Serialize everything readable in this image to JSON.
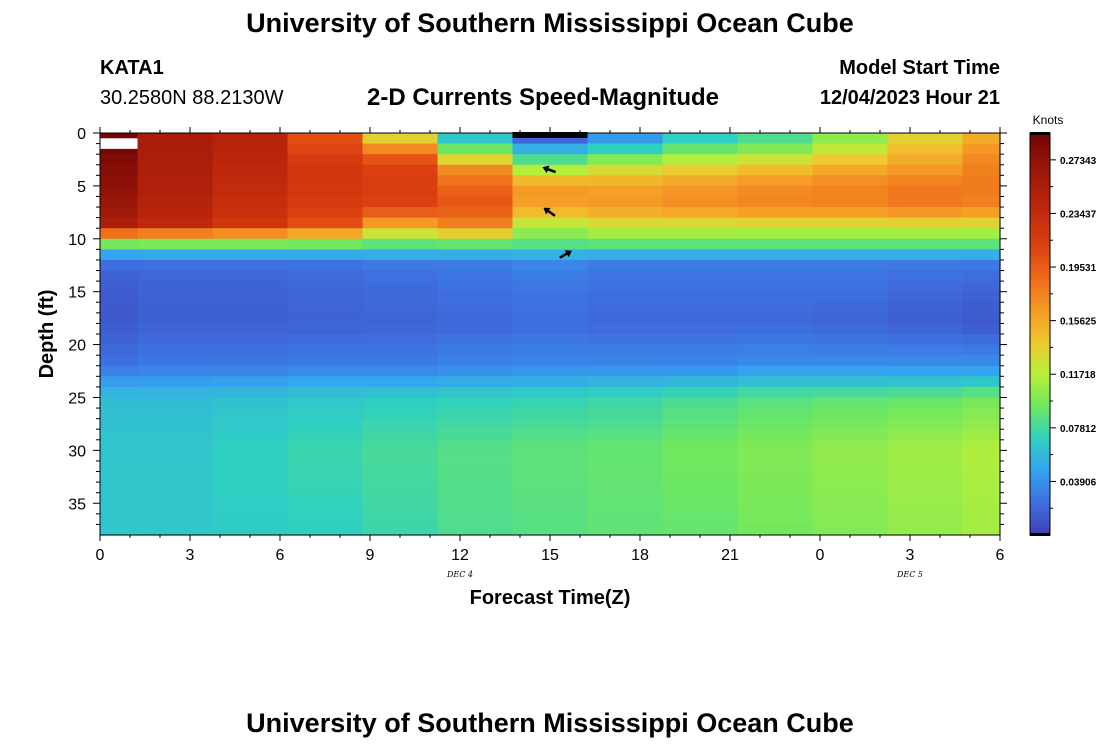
{
  "page": {
    "title": "University of Southern Mississippi Ocean Cube",
    "title_repeat": "University of Southern Mississippi Ocean Cube"
  },
  "header": {
    "station": "KATA1",
    "coordinates": "30.2580N  88.2130W",
    "subtitle": "2-D Currents Speed-Magnitude",
    "model_start_label": "Model Start Time",
    "model_start_value": "12/04/2023 Hour 21"
  },
  "chart_data": {
    "type": "heatmap",
    "title": "2-D Currents Speed-Magnitude",
    "xlabel": "Forecast Time(Z)",
    "ylabel": "Depth (ft)",
    "x_tick_labels": [
      "0",
      "3",
      "6",
      "9",
      "12",
      "15",
      "18",
      "21",
      "0",
      "3",
      "6"
    ],
    "x_day_labels": [
      {
        "label": "DEC 4",
        "at_tick": 4
      },
      {
        "label": "DEC 5",
        "at_tick": 9
      }
    ],
    "y_tick_labels": [
      "0",
      "5",
      "10",
      "15",
      "20",
      "25",
      "30",
      "35"
    ],
    "xlim": [
      0,
      30
    ],
    "ylim": [
      0,
      38
    ],
    "colorbar": {
      "unit": "Knots",
      "min": 0,
      "max": 0.293,
      "tick_values": [
        0.27343,
        0.23437,
        0.19531,
        0.15625,
        0.11718,
        0.07812,
        0.03906
      ],
      "tick_labels": [
        "0.27343",
        "0.23437",
        "0.19531",
        "0.15625",
        "0.11718",
        "0.07812",
        "0.03906"
      ]
    },
    "columns": [
      {
        "x0": 0,
        "x1": 1.25
      },
      {
        "x0": 1.25,
        "x1": 3.75
      },
      {
        "x0": 3.75,
        "x1": 6.25
      },
      {
        "x0": 6.25,
        "x1": 8.75
      },
      {
        "x0": 8.75,
        "x1": 11.25
      },
      {
        "x0": 11.25,
        "x1": 13.75
      },
      {
        "x0": 13.75,
        "x1": 16.25
      },
      {
        "x0": 16.25,
        "x1": 18.75
      },
      {
        "x0": 18.75,
        "x1": 21.25
      },
      {
        "x0": 21.25,
        "x1": 23.75
      },
      {
        "x0": 23.75,
        "x1": 26.25
      },
      {
        "x0": 26.25,
        "x1": 28.75
      },
      {
        "x0": 28.75,
        "x1": 30
      }
    ],
    "depth_profiles": [
      {
        "depths": [
          0,
          1,
          2,
          3,
          5,
          7,
          9,
          10,
          11,
          12,
          14,
          18,
          22,
          24,
          25,
          30,
          38
        ],
        "values": [
          0.29,
          0.29,
          0.285,
          0.28,
          0.275,
          0.265,
          0.25,
          0.12,
          0.07,
          0.025,
          0.015,
          0.013,
          0.025,
          0.05,
          0.06,
          0.065,
          0.065
        ]
      },
      {
        "depths": [
          0,
          1,
          3,
          5,
          7,
          9,
          10,
          11,
          12,
          14,
          18,
          22,
          24,
          25,
          30,
          38
        ],
        "values": [
          0.255,
          0.255,
          0.253,
          0.25,
          0.245,
          0.235,
          0.12,
          0.075,
          0.025,
          0.018,
          0.016,
          0.028,
          0.05,
          0.06,
          0.065,
          0.065
        ]
      },
      {
        "depths": [
          0,
          1,
          3,
          5,
          7,
          9,
          10,
          11,
          12,
          14,
          18,
          22,
          24,
          25,
          30,
          38
        ],
        "values": [
          0.245,
          0.245,
          0.24,
          0.235,
          0.23,
          0.22,
          0.12,
          0.075,
          0.025,
          0.018,
          0.016,
          0.028,
          0.052,
          0.062,
          0.07,
          0.068
        ]
      },
      {
        "depths": [
          0,
          1,
          3,
          5,
          7,
          9,
          10,
          11,
          12,
          14,
          18,
          22,
          24,
          25,
          30,
          38
        ],
        "values": [
          0.2,
          0.205,
          0.22,
          0.22,
          0.215,
          0.2,
          0.115,
          0.075,
          0.027,
          0.02,
          0.017,
          0.03,
          0.055,
          0.065,
          0.075,
          0.07
        ]
      },
      {
        "depths": [
          0,
          1,
          2,
          3,
          5,
          7,
          9,
          10,
          11,
          12,
          14,
          18,
          22,
          24,
          25,
          30,
          38
        ],
        "values": [
          0.115,
          0.155,
          0.19,
          0.21,
          0.215,
          0.21,
          0.15,
          0.1,
          0.075,
          0.03,
          0.022,
          0.018,
          0.03,
          0.055,
          0.068,
          0.08,
          0.075
        ]
      },
      {
        "depths": [
          0,
          1,
          2,
          3,
          5,
          7,
          9,
          10,
          11,
          12,
          14,
          18,
          22,
          24,
          25,
          30,
          38
        ],
        "values": [
          0.045,
          0.085,
          0.1,
          0.165,
          0.19,
          0.2,
          0.17,
          0.105,
          0.075,
          0.03,
          0.025,
          0.02,
          0.033,
          0.058,
          0.07,
          0.085,
          0.082
        ]
      },
      {
        "depths": [
          0,
          1,
          2,
          3,
          5,
          7,
          9,
          10,
          11,
          12,
          14,
          18,
          22,
          24,
          25,
          30,
          38
        ],
        "values": [
          0.0,
          0.04,
          0.065,
          0.1,
          0.165,
          0.16,
          0.11,
          0.095,
          0.075,
          0.035,
          0.028,
          0.022,
          0.035,
          0.06,
          0.072,
          0.088,
          0.085
        ]
      },
      {
        "depths": [
          0,
          1,
          2,
          3,
          5,
          7,
          9,
          10,
          11,
          12,
          14,
          18,
          22,
          24,
          25,
          30,
          38
        ],
        "values": [
          0.025,
          0.06,
          0.08,
          0.12,
          0.16,
          0.165,
          0.12,
          0.1,
          0.075,
          0.03,
          0.025,
          0.02,
          0.035,
          0.062,
          0.075,
          0.09,
          0.088
        ]
      },
      {
        "depths": [
          0,
          1,
          2,
          3,
          5,
          7,
          9,
          10,
          11,
          12,
          14,
          18,
          22,
          24,
          25,
          30,
          38
        ],
        "values": [
          0.06,
          0.08,
          0.1,
          0.13,
          0.165,
          0.17,
          0.12,
          0.1,
          0.075,
          0.03,
          0.025,
          0.02,
          0.035,
          0.065,
          0.08,
          0.095,
          0.09
        ]
      },
      {
        "depths": [
          0,
          1,
          2,
          3,
          5,
          7,
          9,
          10,
          11,
          12,
          14,
          18,
          22,
          24,
          25,
          30,
          38
        ],
        "values": [
          0.075,
          0.09,
          0.11,
          0.14,
          0.17,
          0.175,
          0.12,
          0.1,
          0.075,
          0.03,
          0.025,
          0.02,
          0.038,
          0.07,
          0.085,
          0.1,
          0.095
        ]
      },
      {
        "depths": [
          0,
          1,
          2,
          3,
          5,
          7,
          9,
          10,
          11,
          12,
          14,
          18,
          22,
          24,
          25,
          30,
          38
        ],
        "values": [
          0.1,
          0.11,
          0.13,
          0.15,
          0.175,
          0.175,
          0.12,
          0.1,
          0.075,
          0.03,
          0.025,
          0.018,
          0.038,
          0.07,
          0.088,
          0.105,
          0.1
        ]
      },
      {
        "depths": [
          0,
          1,
          2,
          3,
          5,
          7,
          9,
          10,
          11,
          12,
          14,
          18,
          22,
          24,
          25,
          30,
          38
        ],
        "values": [
          0.13,
          0.14,
          0.15,
          0.16,
          0.18,
          0.18,
          0.12,
          0.1,
          0.075,
          0.03,
          0.022,
          0.015,
          0.038,
          0.072,
          0.09,
          0.11,
          0.105
        ]
      },
      {
        "depths": [
          0,
          1,
          2,
          3,
          5,
          7,
          9,
          10,
          11,
          12,
          14,
          18,
          22,
          24,
          25,
          30,
          38
        ],
        "values": [
          0.15,
          0.16,
          0.17,
          0.175,
          0.18,
          0.175,
          0.12,
          0.1,
          0.075,
          0.03,
          0.02,
          0.012,
          0.038,
          0.075,
          0.095,
          0.115,
          0.11
        ]
      }
    ],
    "vector_arrows": [
      {
        "x": 15,
        "depth": 3.5,
        "direction": "west"
      },
      {
        "x": 15,
        "depth": 7.5,
        "direction": "northwest"
      },
      {
        "x": 15.5,
        "depth": 11.5,
        "direction": "northeast"
      }
    ]
  }
}
